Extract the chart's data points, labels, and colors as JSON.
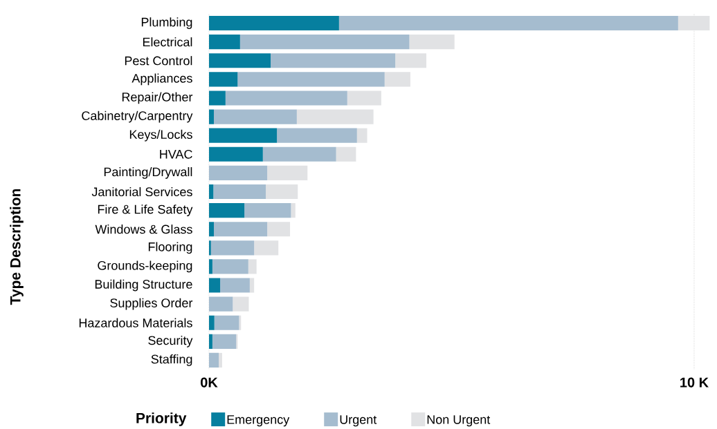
{
  "chart_data": {
    "type": "bar",
    "orientation": "horizontal",
    "stacked": true,
    "ylabel": "Type Description",
    "legend_title": "Priority",
    "legend": "bottom",
    "categories": [
      "Plumbing",
      "Electrical",
      "Pest Control",
      "Appliances",
      "Repair/Other",
      "Cabinetry/Carpentry",
      "Keys/Locks",
      "HVAC",
      "Painting/Drywall",
      "Janitorial Services",
      "Fire & Life Safety",
      "Windows & Glass",
      "Flooring",
      "Grounds-keeping",
      "Building Structure",
      "Supplies Order",
      "Hazardous Materials",
      "Security",
      "Staffing"
    ],
    "series": [
      {
        "name": "Emergency",
        "color": "#067f9f",
        "values": [
          2680,
          640,
          1270,
          590,
          340,
          100,
          1400,
          1110,
          0,
          90,
          730,
          100,
          40,
          70,
          230,
          0,
          110,
          70,
          0
        ]
      },
      {
        "name": "Urgent",
        "color": "#a5bccf",
        "values": [
          6990,
          3490,
          2570,
          3030,
          2510,
          1710,
          1650,
          1510,
          1200,
          1080,
          960,
          1100,
          890,
          740,
          610,
          490,
          510,
          490,
          200
        ]
      },
      {
        "name": "Non Urgent",
        "color": "#e1e2e4",
        "values": [
          650,
          930,
          640,
          530,
          700,
          1580,
          210,
          410,
          830,
          660,
          90,
          470,
          500,
          170,
          90,
          330,
          40,
          30,
          70
        ]
      }
    ],
    "xlim": [
      0,
      10350
    ],
    "xticks": [
      {
        "value": 0,
        "label": "0K"
      },
      {
        "value": 10000,
        "label": "10 K"
      }
    ],
    "grid": "x"
  }
}
